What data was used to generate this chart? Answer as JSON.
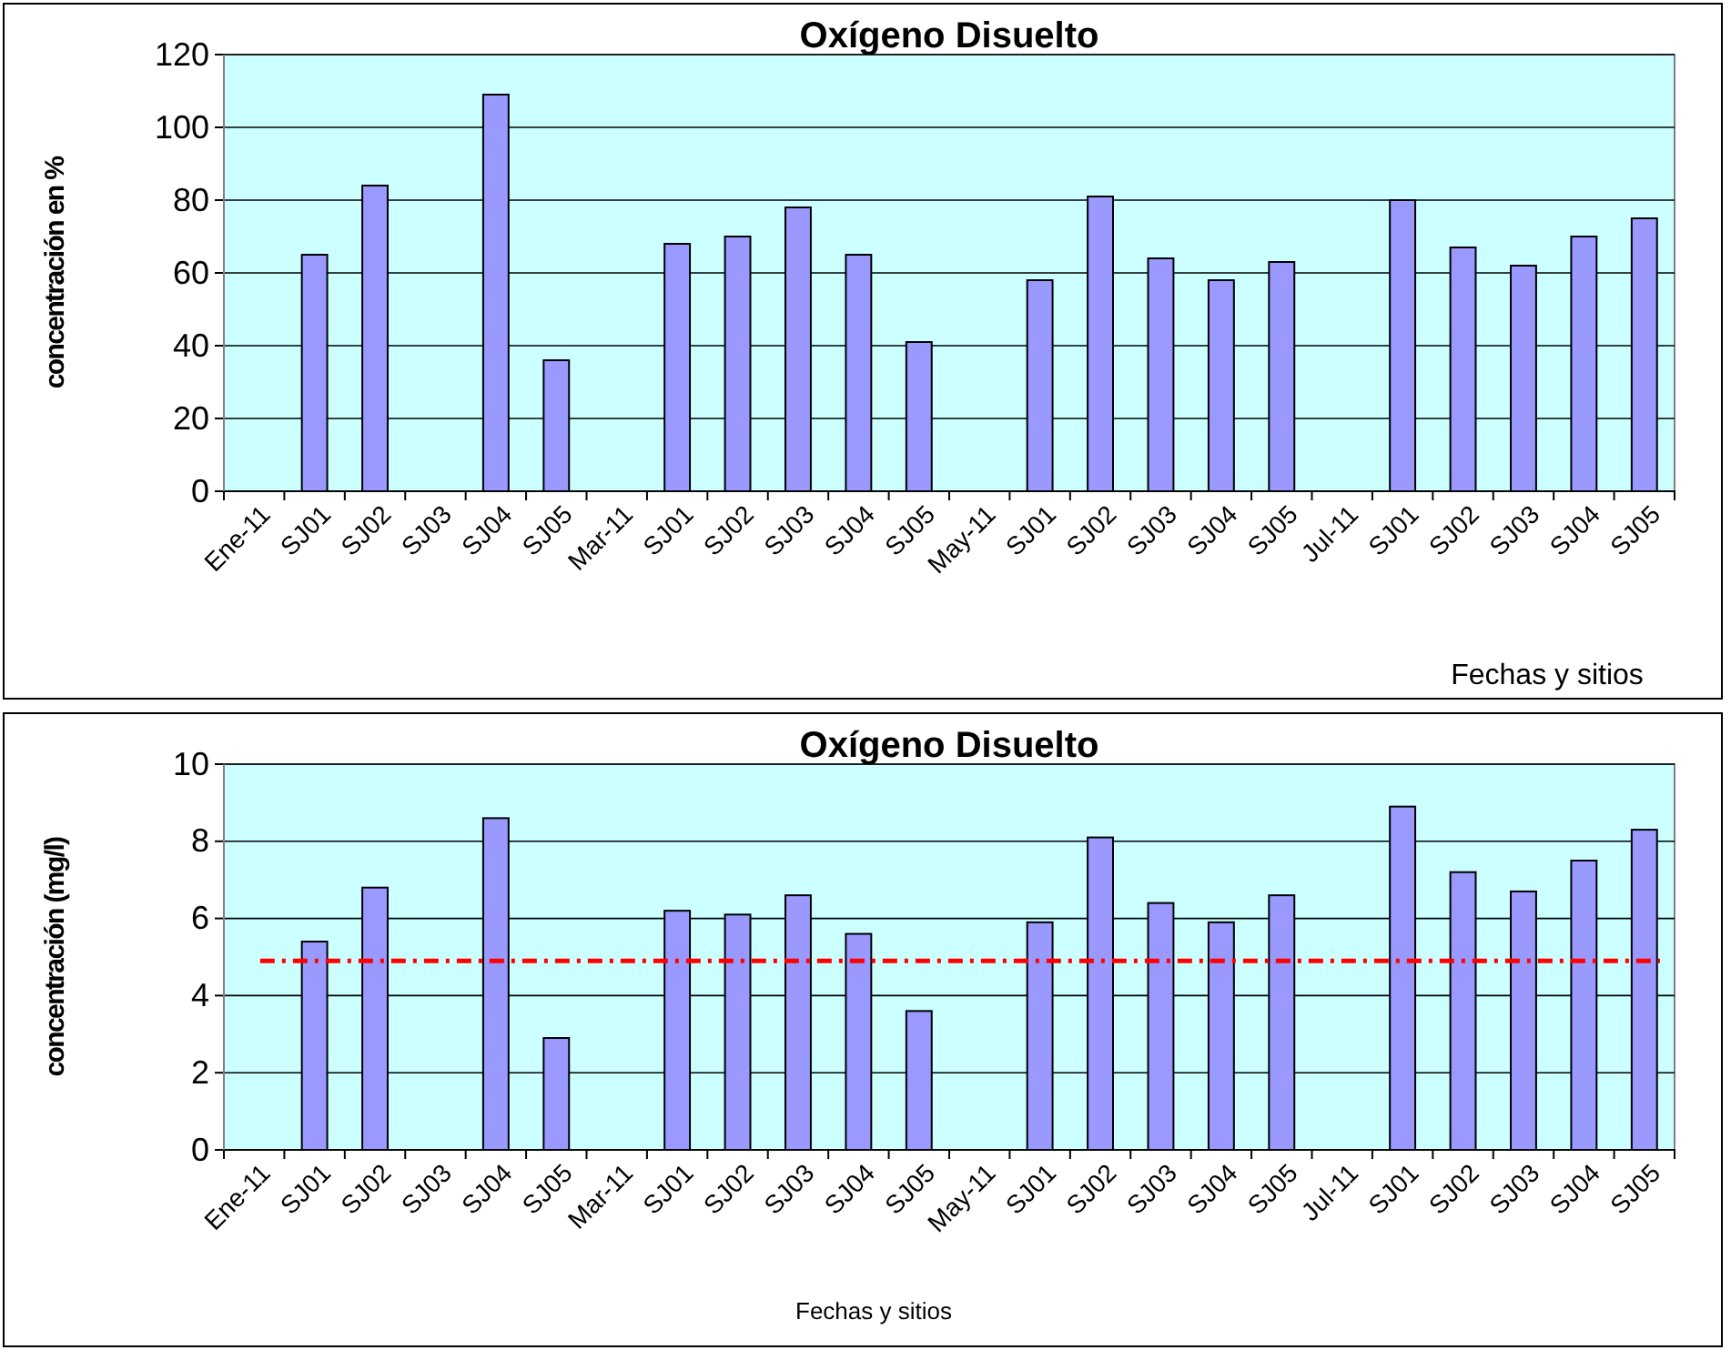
{
  "chart_data": [
    {
      "type": "bar",
      "title": "Oxígeno Disuelto",
      "xlabel": "Fechas y sitios",
      "ylabel": "concentración en %",
      "categories": [
        "Ene-11",
        "SJ01",
        "SJ02",
        "SJ03",
        "SJ04",
        "SJ05",
        "Mar-11",
        "SJ01",
        "SJ02",
        "SJ03",
        "SJ04",
        "SJ05",
        "May-11",
        "SJ01",
        "SJ02",
        "SJ03",
        "SJ04",
        "SJ05",
        "Jul-11",
        "SJ01",
        "SJ02",
        "SJ03",
        "SJ04",
        "SJ05"
      ],
      "values": [
        null,
        65,
        84,
        null,
        109,
        36,
        null,
        68,
        70,
        78,
        65,
        41,
        null,
        58,
        81,
        64,
        58,
        63,
        null,
        80,
        67,
        62,
        70,
        75
      ],
      "color": "#9999ff",
      "ylim": [
        0,
        120
      ],
      "yticks": [
        0,
        20,
        40,
        60,
        80,
        100,
        120
      ],
      "grid": "y"
    },
    {
      "type": "bar",
      "title": "Oxígeno Disuelto",
      "xlabel": "Fechas y sitios",
      "ylabel": "concentración (mg/l)",
      "categories": [
        "Ene-11",
        "SJ01",
        "SJ02",
        "SJ03",
        "SJ04",
        "SJ05",
        "Mar-11",
        "SJ01",
        "SJ02",
        "SJ03",
        "SJ04",
        "SJ05",
        "May-11",
        "SJ01",
        "SJ02",
        "SJ03",
        "SJ04",
        "SJ05",
        "Jul-11",
        "SJ01",
        "SJ02",
        "SJ03",
        "SJ04",
        "SJ05"
      ],
      "values": [
        null,
        5.4,
        6.8,
        null,
        8.6,
        2.9,
        null,
        6.2,
        6.1,
        6.6,
        5.6,
        3.6,
        null,
        5.9,
        8.1,
        6.4,
        5.9,
        6.6,
        null,
        8.9,
        7.2,
        6.7,
        7.5,
        8.3
      ],
      "color": "#9999ff",
      "ylim": [
        0,
        10
      ],
      "yticks": [
        0,
        2,
        4,
        6,
        8,
        10
      ],
      "grid": "y",
      "ref_lines": [
        {
          "axis": "y",
          "value": 4.9,
          "label": null,
          "color": "#ff0000",
          "line_style": "dashdot"
        }
      ]
    }
  ]
}
